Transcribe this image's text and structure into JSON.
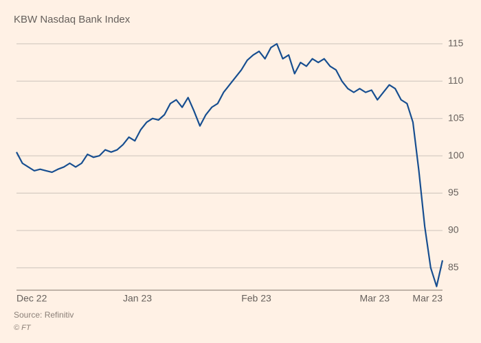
{
  "chart": {
    "type": "line",
    "title": "KBW Nasdaq Bank Index",
    "background_color": "#fff1e5",
    "grid_color": "#ccc3bb",
    "baseline_color": "#7f7369",
    "text_color": "#66605c",
    "title_fontsize": 15,
    "tick_fontsize": 14,
    "line_color": "#174e90",
    "line_width": 2.2,
    "ylim": [
      82,
      116
    ],
    "yticks": [
      85,
      90,
      95,
      100,
      105,
      110,
      115
    ],
    "ytick_labels": [
      "85",
      "90",
      "95",
      "100",
      "105",
      "110",
      "115"
    ],
    "x_range": [
      0,
      72
    ],
    "xticks": [
      0,
      18,
      38,
      58,
      72
    ],
    "xtick_labels": [
      "Dec 22",
      "Jan 23",
      "Feb 23",
      "Mar 23",
      "Mar 23"
    ],
    "series": [
      {
        "name": "KBW Nasdaq Bank Index",
        "values": [
          100.5,
          99.0,
          98.5,
          98.0,
          98.2,
          98.0,
          97.8,
          98.2,
          98.5,
          99.0,
          98.5,
          99.0,
          100.2,
          99.8,
          100.0,
          100.8,
          100.5,
          100.8,
          101.5,
          102.5,
          102.0,
          103.5,
          104.5,
          105.0,
          104.8,
          105.5,
          107.0,
          107.5,
          106.5,
          107.8,
          106.0,
          104.0,
          105.5,
          106.5,
          107.0,
          108.5,
          109.5,
          110.5,
          111.5,
          112.8,
          113.5,
          114.0,
          113.0,
          114.5,
          115.0,
          113.0,
          113.5,
          111.0,
          112.5,
          112.0,
          113.0,
          112.5,
          113.0,
          112.0,
          111.5,
          110.0,
          109.0,
          108.5,
          109.0,
          108.5,
          108.8,
          107.5,
          108.5,
          109.5,
          109.0,
          107.5,
          107.0,
          104.5,
          98.0,
          90.5,
          85.0,
          82.5,
          86.0
        ]
      }
    ]
  },
  "footer": {
    "source": "Source: Refinitiv",
    "copyright": "© FT"
  }
}
